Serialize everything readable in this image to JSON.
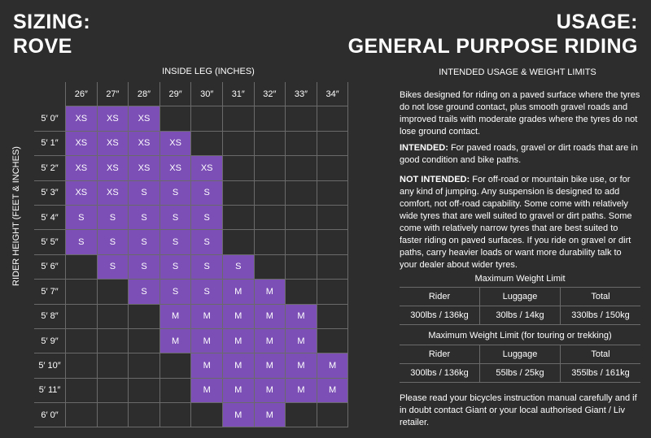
{
  "title_left": [
    "SIZING:",
    "ROVE"
  ],
  "title_right": [
    "USAGE:",
    "GENERAL PURPOSE RIDING"
  ],
  "axis_top": "INSIDE LEG (INCHES)",
  "axis_left": "RIDER HEIGHT (FEET & INCHES)",
  "columns": [
    "26″",
    "27″",
    "28″",
    "29″",
    "30″",
    "31″",
    "32″",
    "33″",
    "34″"
  ],
  "rows": [
    {
      "h": "5′ 0″",
      "cells": [
        "XS",
        "XS",
        "XS",
        "",
        "",
        "",
        "",
        "",
        ""
      ]
    },
    {
      "h": "5′ 1″",
      "cells": [
        "XS",
        "XS",
        "XS",
        "XS",
        "",
        "",
        "",
        "",
        ""
      ]
    },
    {
      "h": "5′ 2″",
      "cells": [
        "XS",
        "XS",
        "XS",
        "XS",
        "XS",
        "",
        "",
        "",
        ""
      ]
    },
    {
      "h": "5′ 3″",
      "cells": [
        "XS",
        "XS",
        "S",
        "S",
        "S",
        "",
        "",
        "",
        ""
      ]
    },
    {
      "h": "5′ 4″",
      "cells": [
        "S",
        "S",
        "S",
        "S",
        "S",
        "",
        "",
        "",
        ""
      ]
    },
    {
      "h": "5′ 5″",
      "cells": [
        "S",
        "S",
        "S",
        "S",
        "S",
        "",
        "",
        "",
        ""
      ]
    },
    {
      "h": "5′ 6″",
      "cells": [
        "",
        "S",
        "S",
        "S",
        "S",
        "S",
        "",
        "",
        ""
      ]
    },
    {
      "h": "5′ 7″",
      "cells": [
        "",
        "",
        "S",
        "S",
        "S",
        "M",
        "M",
        "",
        ""
      ]
    },
    {
      "h": "5′ 8″",
      "cells": [
        "",
        "",
        "",
        "M",
        "M",
        "M",
        "M",
        "M",
        ""
      ]
    },
    {
      "h": "5′ 9″",
      "cells": [
        "",
        "",
        "",
        "M",
        "M",
        "M",
        "M",
        "M",
        ""
      ]
    },
    {
      "h": "5′ 10″",
      "cells": [
        "",
        "",
        "",
        "",
        "M",
        "M",
        "M",
        "M",
        "M"
      ]
    },
    {
      "h": "5′ 11″",
      "cells": [
        "",
        "",
        "",
        "",
        "M",
        "M",
        "M",
        "M",
        "M"
      ]
    },
    {
      "h": "6′ 0″",
      "cells": [
        "",
        "",
        "",
        "",
        "",
        "M",
        "M",
        "",
        ""
      ]
    }
  ],
  "usage": {
    "heading": "INTENDED USAGE & WEIGHT LIMITS",
    "intro": "Bikes designed for  riding on a paved surface where the tyres do not lose ground contact, plus smooth gravel roads and improved trails with moderate grades where the tyres do not lose ground contact.",
    "intended_label": "INTENDED:",
    "intended_text": " For paved roads, gravel or dirt roads that are in good condition and bike paths.",
    "not_intended_label": "NOT INTENDED:",
    "not_intended_text": " For off-road or mountain bike use, or for any kind of jumping. Any suspension is designed to add comfort, not off-road capability. Some come with relatively wide tyres that are well suited to gravel or dirt paths. Some come with relatively narrow tyres that are best suited to faster riding on paved surfaces. If you ride on gravel or dirt paths, carry heavier loads or want more durability talk to your dealer about wider tyres."
  },
  "weight1": {
    "title": "Maximum Weight Limit",
    "headers": [
      "Rider",
      "Luggage",
      "Total"
    ],
    "values": [
      "300lbs / 136kg",
      "30lbs / 14kg",
      "330lbs / 150kg"
    ]
  },
  "weight2": {
    "title": "Maximum Weight Limit (for touring or trekking)",
    "headers": [
      "Rider",
      "Luggage",
      "Total"
    ],
    "values": [
      "300lbs / 136kg",
      "55lbs / 25kg",
      "355lbs / 161kg"
    ]
  },
  "footer": "Please read your bicycles instruction manual carefully and if in doubt contact Giant or your local authorised Giant / Liv retailer.",
  "colors": {
    "background": "#2d2d2e",
    "highlight": "#7b4fb6",
    "grid": "#6a6a6a"
  }
}
